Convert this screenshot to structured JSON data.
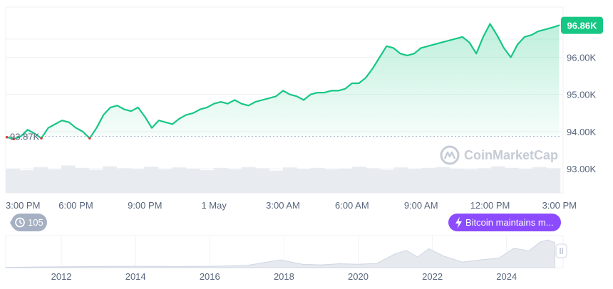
{
  "chart_data": {
    "type": "area",
    "watermark": "CoinMarketCap",
    "yticks": [
      "96.00K",
      "95.00K",
      "94.00K",
      "93.00K"
    ],
    "ytick_values": [
      96.0,
      95.0,
      94.0,
      93.0
    ],
    "ylim": [
      92.35,
      97.35
    ],
    "xticks": [
      "3:00 PM",
      "6:00 PM",
      "9:00 PM",
      "1 May",
      "3:00 AM",
      "6:00 AM",
      "9:00 AM",
      "12:00 PM",
      "3:00 PM"
    ],
    "xtick_hours": [
      0,
      3,
      6,
      9,
      12,
      15,
      18,
      21,
      24
    ],
    "xlim_hours": [
      -0.05,
      24.05
    ],
    "current_price": {
      "value": 96.86,
      "label": "96.86K",
      "color": "#16c784"
    },
    "open_price": {
      "value": 93.87,
      "label": "93.87K"
    },
    "colors": {
      "up": "#16c784",
      "down": "#ea3943"
    },
    "series": [
      {
        "x_hours": [
          0.0,
          0.3,
          0.6,
          0.9,
          1.2,
          1.5,
          1.8,
          2.1,
          2.4,
          2.7,
          3.0,
          3.3,
          3.6,
          3.9,
          4.2,
          4.5,
          4.8,
          5.1,
          5.4,
          5.7,
          6.0,
          6.3,
          6.6,
          6.9,
          7.2,
          7.5,
          7.8,
          8.1,
          8.4,
          8.7,
          9.0,
          9.3,
          9.6,
          9.9,
          10.2,
          10.5,
          10.8,
          11.1,
          11.4,
          11.7,
          12.0,
          12.3,
          12.6,
          12.9,
          13.2,
          13.5,
          13.8,
          14.1,
          14.4,
          14.7,
          15.0,
          15.3,
          15.6,
          15.9,
          16.2,
          16.5,
          16.8,
          17.1,
          17.4,
          17.7,
          18.0,
          18.3,
          18.6,
          18.9,
          19.2,
          19.5,
          19.8,
          20.1,
          20.4,
          20.7,
          21.0,
          21.3,
          21.6,
          21.9,
          22.2,
          22.5,
          22.8,
          23.1,
          23.4,
          23.7,
          24.0
        ],
        "values": [
          93.85,
          93.8,
          93.87,
          94.05,
          93.95,
          93.82,
          94.1,
          94.2,
          94.3,
          94.25,
          94.1,
          94.0,
          93.82,
          94.1,
          94.45,
          94.65,
          94.7,
          94.6,
          94.55,
          94.65,
          94.4,
          94.1,
          94.3,
          94.25,
          94.2,
          94.35,
          94.45,
          94.5,
          94.6,
          94.65,
          94.75,
          94.8,
          94.75,
          94.85,
          94.75,
          94.7,
          94.8,
          94.85,
          94.9,
          94.95,
          95.1,
          95.0,
          94.95,
          94.85,
          95.0,
          95.05,
          95.05,
          95.1,
          95.1,
          95.15,
          95.3,
          95.3,
          95.45,
          95.7,
          96.0,
          96.3,
          96.25,
          96.1,
          96.05,
          96.1,
          96.25,
          96.3,
          96.35,
          96.4,
          96.45,
          96.5,
          96.55,
          96.4,
          96.1,
          96.55,
          96.9,
          96.6,
          96.25,
          96.0,
          96.35,
          96.55,
          96.6,
          96.7,
          96.75,
          96.8,
          96.86
        ]
      }
    ],
    "volume_levels": [
      0.62,
      0.58,
      0.66,
      0.6,
      0.7,
      0.64,
      0.59,
      0.68,
      0.63,
      0.61,
      0.67,
      0.6,
      0.65,
      0.62,
      0.58,
      0.64,
      0.6,
      0.66,
      0.63,
      0.57,
      0.65,
      0.61,
      0.64,
      0.6,
      0.62,
      0.67,
      0.63,
      0.59,
      0.65,
      0.61,
      0.64,
      0.66,
      0.62,
      0.6,
      0.63,
      0.68,
      0.64,
      0.61,
      0.66,
      0.63
    ],
    "overview": {
      "xticks": [
        "2012",
        "2014",
        "2016",
        "2018",
        "2020",
        "2022",
        "2024"
      ],
      "xtick_years": [
        2012,
        2014,
        2016,
        2018,
        2020,
        2022,
        2024
      ],
      "xlim_years": [
        2010.5,
        2025.35
      ],
      "years": [
        2010.5,
        2011,
        2012,
        2013,
        2014,
        2015,
        2016,
        2017,
        2017.9,
        2018.5,
        2019,
        2019.5,
        2020,
        2020.5,
        2021.0,
        2021.3,
        2021.6,
        2021.9,
        2022.3,
        2022.8,
        2023.3,
        2023.8,
        2024.2,
        2024.6,
        2024.9,
        2025.1,
        2025.3
      ],
      "levels": [
        0.01,
        0.02,
        0.03,
        0.04,
        0.05,
        0.04,
        0.05,
        0.08,
        0.28,
        0.12,
        0.1,
        0.14,
        0.12,
        0.15,
        0.5,
        0.62,
        0.38,
        0.68,
        0.42,
        0.2,
        0.28,
        0.35,
        0.7,
        0.6,
        0.92,
        1.0,
        0.9
      ]
    }
  },
  "badges": {
    "history_count": "105",
    "news": "Bitcoin maintains m..."
  }
}
